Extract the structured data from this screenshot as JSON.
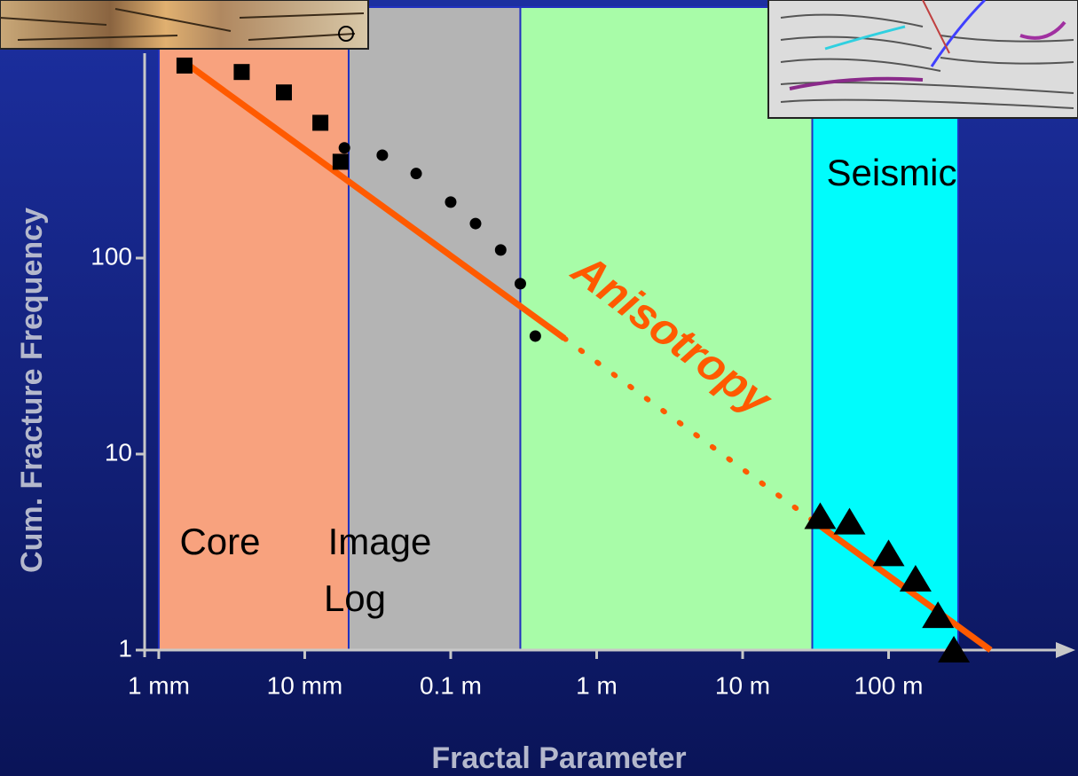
{
  "chart_data": {
    "type": "scatter",
    "x_label": "Fractal Parameter",
    "y_label": "Cum. Fracture Frequency",
    "log_x": true,
    "log_y": true,
    "xlim": [
      0.0008,
      1500
    ],
    "ylim": [
      1,
      1000
    ],
    "xticks": [
      {
        "value": 0.001,
        "label": "1 mm"
      },
      {
        "value": 0.01,
        "label": "10 mm"
      },
      {
        "value": 0.1,
        "label": "0.1 m"
      },
      {
        "value": 1,
        "label": "1 m"
      },
      {
        "value": 10,
        "label": "10 m"
      },
      {
        "value": 100,
        "label": "100 m"
      }
    ],
    "yticks": [
      1,
      10,
      100
    ],
    "regions": [
      {
        "label_lines": [
          "Core"
        ],
        "range": [
          0.001,
          0.02
        ],
        "color": "#f8a27e"
      },
      {
        "label_lines": [
          "Image",
          "Log"
        ],
        "range": [
          0.02,
          0.3
        ],
        "color": "#b4b4b4"
      },
      {
        "range": [
          0.3,
          30
        ],
        "color": "#a8fca8"
      },
      {
        "label_lines": [
          "Seismic"
        ],
        "range": [
          30,
          300
        ],
        "color": "#00fcfc"
      }
    ],
    "series": [
      {
        "marker": "square",
        "color": "#000000",
        "x": [
          0.0015,
          0.0037,
          0.0072,
          0.0128,
          0.0176
        ],
        "values": [
          960,
          890,
          700,
          490,
          310
        ]
      },
      {
        "marker": "circle",
        "color": "#000000",
        "x": [
          0.0187,
          0.034,
          0.058,
          0.1,
          0.148,
          0.22,
          0.3,
          0.38
        ],
        "values": [
          365,
          335,
          270,
          193,
          150,
          110,
          74,
          40
        ]
      },
      {
        "marker": "triangle",
        "color": "#000000",
        "x": [
          34,
          54,
          100,
          153,
          218,
          280
        ],
        "values": [
          4.8,
          4.5,
          3.1,
          2.3,
          1.5,
          1
        ]
      }
    ],
    "fit": {
      "color": "#ff5a00",
      "x": [
        0.0015,
        0.6,
        30,
        500
      ],
      "values": [
        1000,
        39,
        4.6,
        1
      ],
      "segment_styles": [
        "solid",
        "dotted",
        "solid"
      ]
    },
    "annotation": {
      "text": "Anisotropy",
      "color": "#ff5a00"
    }
  }
}
